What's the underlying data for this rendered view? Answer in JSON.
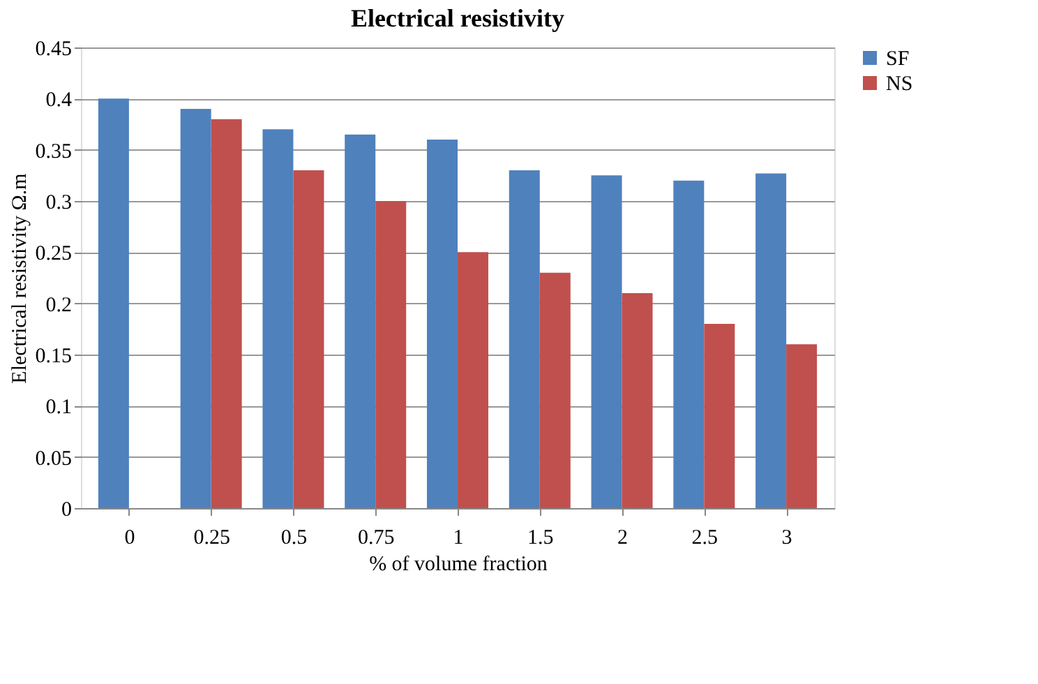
{
  "chart_data": {
    "type": "bar",
    "title": "Electrical resistivity",
    "xlabel": "% of volume fraction",
    "ylabel": "Electrical resistivity Ω.m",
    "categories": [
      "0",
      "0.25",
      "0.5",
      "0.75",
      "1",
      "1.5",
      "2",
      "2.5",
      "3"
    ],
    "series": [
      {
        "name": "SF",
        "color": "#4f81bd",
        "values": [
          0.4,
          0.39,
          0.37,
          0.365,
          0.36,
          0.33,
          0.325,
          0.32,
          0.327
        ]
      },
      {
        "name": "NS",
        "color": "#c0504d",
        "values": [
          null,
          0.38,
          0.33,
          0.3,
          0.25,
          0.23,
          0.21,
          0.18,
          0.16
        ]
      }
    ],
    "ylim": [
      0,
      0.45
    ],
    "yticks": [
      0,
      0.05,
      0.1,
      0.15,
      0.2,
      0.25,
      0.3,
      0.35,
      0.4,
      0.45
    ],
    "grid": "y",
    "legend": "right"
  }
}
